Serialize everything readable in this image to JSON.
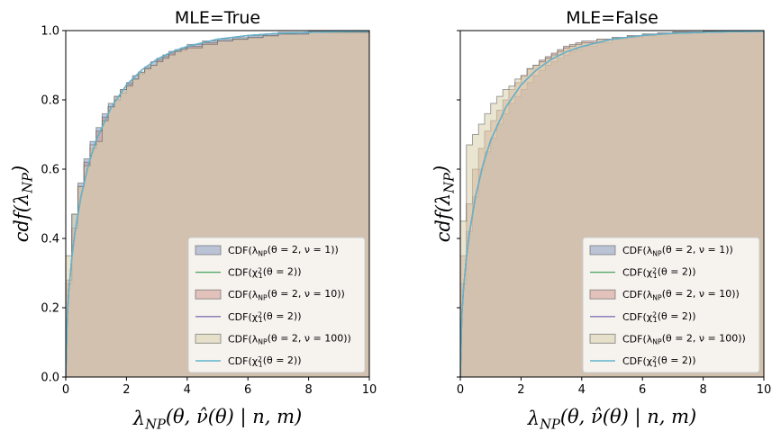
{
  "chart_data": [
    {
      "type": "area",
      "title": "MLE=True",
      "xlabel": "λNP(θ, ν̂(θ) | n, m)",
      "ylabel": "cdf(λNP)",
      "xlim": [
        0,
        10
      ],
      "ylim": [
        0,
        1
      ],
      "xticks": [
        "0",
        "2",
        "4",
        "6",
        "8",
        "10"
      ],
      "yticks": [
        "0.0",
        "0.2",
        "0.4",
        "0.6",
        "0.8",
        "1.0"
      ],
      "grid": false,
      "legend_position": "lower-right",
      "series": [
        {
          "name": "CDF(λNP(θ = 2, ν = 1))",
          "kind": "step-fill",
          "color": "#8a9cc2",
          "x": [
            0,
            0.2,
            0.4,
            0.6,
            0.8,
            1.0,
            1.2,
            1.4,
            1.6,
            1.8,
            2.0,
            2.2,
            2.4,
            2.6,
            2.8,
            3.0,
            3.2,
            3.4,
            3.6,
            3.8,
            4.0,
            4.5,
            5.0,
            5.5,
            6.0,
            6.5,
            7.0,
            8.0,
            10.0
          ],
          "y": [
            0.27,
            0.47,
            0.56,
            0.63,
            0.68,
            0.72,
            0.76,
            0.79,
            0.81,
            0.83,
            0.85,
            0.87,
            0.88,
            0.895,
            0.91,
            0.92,
            0.93,
            0.94,
            0.945,
            0.95,
            0.96,
            0.97,
            0.975,
            0.98,
            0.985,
            0.99,
            0.995,
            0.998,
            1.0
          ]
        },
        {
          "name": "CDF(χ²₁(θ = 2))",
          "kind": "line",
          "color": "#55a868",
          "x": [
            0,
            0.05,
            0.1,
            0.2,
            0.3,
            0.5,
            0.75,
            1,
            1.5,
            2,
            2.5,
            3,
            3.5,
            4,
            5,
            6,
            7,
            8,
            9,
            10
          ],
          "y": [
            0,
            0.177,
            0.248,
            0.345,
            0.416,
            0.52,
            0.614,
            0.683,
            0.779,
            0.843,
            0.886,
            0.917,
            0.939,
            0.954,
            0.975,
            0.986,
            0.992,
            0.995,
            0.997,
            0.998
          ]
        },
        {
          "name": "CDF(λNP(θ = 2, ν = 10))",
          "kind": "step-fill",
          "color": "#d2998e",
          "x": [
            0,
            0.2,
            0.4,
            0.6,
            0.8,
            1.0,
            1.2,
            1.4,
            1.6,
            1.8,
            2.0,
            2.2,
            2.4,
            2.6,
            2.8,
            3.0,
            3.2,
            3.4,
            3.6,
            3.8,
            4.0,
            4.5,
            5.0,
            5.5,
            6.0,
            6.5,
            7.0,
            8.0,
            10.0
          ],
          "y": [
            0.28,
            0.43,
            0.55,
            0.62,
            0.66,
            0.71,
            0.75,
            0.78,
            0.8,
            0.82,
            0.845,
            0.86,
            0.875,
            0.89,
            0.9,
            0.915,
            0.925,
            0.935,
            0.94,
            0.95,
            0.955,
            0.965,
            0.97,
            0.975,
            0.98,
            0.985,
            0.99,
            0.995,
            1.0
          ]
        },
        {
          "name": "CDF(χ²₁(θ = 2))",
          "kind": "line",
          "color": "#8172b3",
          "x": [
            0,
            0.05,
            0.1,
            0.2,
            0.3,
            0.5,
            0.75,
            1,
            1.5,
            2,
            2.5,
            3,
            3.5,
            4,
            5,
            6,
            7,
            8,
            9,
            10
          ],
          "y": [
            0,
            0.177,
            0.248,
            0.345,
            0.416,
            0.52,
            0.614,
            0.683,
            0.779,
            0.843,
            0.886,
            0.917,
            0.939,
            0.954,
            0.975,
            0.986,
            0.992,
            0.995,
            0.997,
            0.998
          ]
        },
        {
          "name": "CDF(λNP(θ = 2, ν = 100))",
          "kind": "step-fill",
          "color": "#d8cfac",
          "x": [
            0,
            0.2,
            0.4,
            0.6,
            0.8,
            1.0,
            1.2,
            1.4,
            1.6,
            1.8,
            2.0,
            2.2,
            2.4,
            2.6,
            2.8,
            3.0,
            3.2,
            3.4,
            3.6,
            3.8,
            4.0,
            4.5,
            5.0,
            5.5,
            6.0,
            6.5,
            7.0,
            8.0,
            10.0
          ],
          "y": [
            0.35,
            0.47,
            0.55,
            0.61,
            0.67,
            0.68,
            0.74,
            0.78,
            0.81,
            0.83,
            0.84,
            0.86,
            0.88,
            0.89,
            0.9,
            0.91,
            0.92,
            0.93,
            0.94,
            0.945,
            0.95,
            0.96,
            0.97,
            0.975,
            0.98,
            0.985,
            0.99,
            0.995,
            1.0
          ]
        },
        {
          "name": "CDF(χ²₁(θ = 2))",
          "kind": "line",
          "color": "#64b5cd",
          "x": [
            0,
            0.05,
            0.1,
            0.2,
            0.3,
            0.5,
            0.75,
            1,
            1.5,
            2,
            2.5,
            3,
            3.5,
            4,
            5,
            6,
            7,
            8,
            9,
            10
          ],
          "y": [
            0,
            0.177,
            0.248,
            0.345,
            0.416,
            0.52,
            0.614,
            0.683,
            0.779,
            0.843,
            0.886,
            0.917,
            0.939,
            0.954,
            0.975,
            0.986,
            0.992,
            0.995,
            0.997,
            0.998
          ]
        }
      ]
    },
    {
      "type": "area",
      "title": "MLE=False",
      "xlabel": "λNP(θ, ν̂(θ) | n, m)",
      "ylabel": "cdf(λNP)",
      "xlim": [
        0,
        10
      ],
      "ylim": [
        0,
        1
      ],
      "xticks": [
        "0",
        "2",
        "4",
        "6",
        "8",
        "10"
      ],
      "yticks": [
        "0.0",
        "0.2",
        "0.4",
        "0.6",
        "0.8",
        "1.0"
      ],
      "grid": false,
      "legend_position": "lower-right",
      "series": [
        {
          "name": "CDF(λNP(θ = 2, ν = 1))",
          "kind": "step-fill",
          "color": "#8a9cc2",
          "x": [
            0,
            0.2,
            0.4,
            0.6,
            0.8,
            1.0,
            1.2,
            1.4,
            1.6,
            1.8,
            2.0,
            2.2,
            2.4,
            2.6,
            2.8,
            3.0,
            3.2,
            3.4,
            3.6,
            3.8,
            4.0,
            4.5,
            5.0,
            5.5,
            6.0,
            6.5,
            7.0,
            8.0,
            10.0
          ],
          "y": [
            0.27,
            0.42,
            0.52,
            0.6,
            0.65,
            0.69,
            0.73,
            0.76,
            0.79,
            0.81,
            0.83,
            0.85,
            0.87,
            0.885,
            0.9,
            0.91,
            0.92,
            0.93,
            0.94,
            0.945,
            0.955,
            0.965,
            0.975,
            0.98,
            0.985,
            0.99,
            0.993,
            0.997,
            1.0
          ]
        },
        {
          "name": "CDF(χ²₁(θ = 2))",
          "kind": "line",
          "color": "#55a868",
          "x": [
            0,
            0.05,
            0.1,
            0.2,
            0.3,
            0.5,
            0.75,
            1,
            1.5,
            2,
            2.5,
            3,
            3.5,
            4,
            5,
            6,
            7,
            8,
            9,
            10
          ],
          "y": [
            0,
            0.177,
            0.248,
            0.345,
            0.416,
            0.52,
            0.614,
            0.683,
            0.779,
            0.843,
            0.886,
            0.917,
            0.939,
            0.954,
            0.975,
            0.986,
            0.992,
            0.995,
            0.997,
            0.998
          ]
        },
        {
          "name": "CDF(λNP(θ = 2, ν = 10))",
          "kind": "step-fill",
          "color": "#d2998e",
          "x": [
            0,
            0.2,
            0.4,
            0.6,
            0.8,
            1.0,
            1.2,
            1.4,
            1.6,
            1.8,
            2.0,
            2.2,
            2.4,
            2.6,
            2.8,
            3.0,
            3.2,
            3.4,
            3.6,
            3.8,
            4.0,
            4.5,
            5.0,
            5.5,
            6.0,
            6.5,
            7.0,
            8.0,
            10.0
          ],
          "y": [
            0.35,
            0.5,
            0.6,
            0.66,
            0.71,
            0.74,
            0.77,
            0.8,
            0.83,
            0.85,
            0.87,
            0.89,
            0.9,
            0.915,
            0.925,
            0.935,
            0.945,
            0.955,
            0.96,
            0.965,
            0.97,
            0.975,
            0.98,
            0.985,
            0.99,
            0.993,
            0.996,
            0.998,
            1.0
          ]
        },
        {
          "name": "CDF(χ²₁(θ = 2))",
          "kind": "line",
          "color": "#8172b3",
          "x": [
            0,
            0.05,
            0.1,
            0.2,
            0.3,
            0.5,
            0.75,
            1,
            1.5,
            2,
            2.5,
            3,
            3.5,
            4,
            5,
            6,
            7,
            8,
            9,
            10
          ],
          "y": [
            0,
            0.177,
            0.248,
            0.345,
            0.416,
            0.52,
            0.614,
            0.683,
            0.779,
            0.843,
            0.886,
            0.917,
            0.939,
            0.954,
            0.975,
            0.986,
            0.992,
            0.995,
            0.997,
            0.998
          ]
        },
        {
          "name": "CDF(λNP(θ = 2, ν = 100))",
          "kind": "step-fill",
          "color": "#d8cfac",
          "x": [
            0,
            0.2,
            0.4,
            0.6,
            0.8,
            1.0,
            1.2,
            1.4,
            1.6,
            1.8,
            2.0,
            2.2,
            2.4,
            2.6,
            2.8,
            3.0,
            3.2,
            3.4,
            3.6,
            3.8,
            4.0,
            4.5,
            5.0,
            5.5,
            6.0,
            6.5,
            7.0,
            8.0,
            10.0
          ],
          "y": [
            0.45,
            0.67,
            0.7,
            0.73,
            0.76,
            0.79,
            0.81,
            0.83,
            0.84,
            0.86,
            0.87,
            0.89,
            0.9,
            0.91,
            0.92,
            0.93,
            0.94,
            0.95,
            0.955,
            0.96,
            0.965,
            0.975,
            0.98,
            0.985,
            0.99,
            0.993,
            0.996,
            0.998,
            1.0
          ]
        },
        {
          "name": "CDF(χ²₁(θ = 2))",
          "kind": "line",
          "color": "#64b5cd",
          "x": [
            0,
            0.05,
            0.1,
            0.2,
            0.3,
            0.5,
            0.75,
            1,
            1.5,
            2,
            2.5,
            3,
            3.5,
            4,
            5,
            6,
            7,
            8,
            9,
            10
          ],
          "y": [
            0,
            0.177,
            0.248,
            0.345,
            0.416,
            0.52,
            0.614,
            0.683,
            0.779,
            0.843,
            0.886,
            0.917,
            0.939,
            0.954,
            0.975,
            0.986,
            0.992,
            0.995,
            0.997,
            0.998
          ]
        }
      ]
    }
  ]
}
